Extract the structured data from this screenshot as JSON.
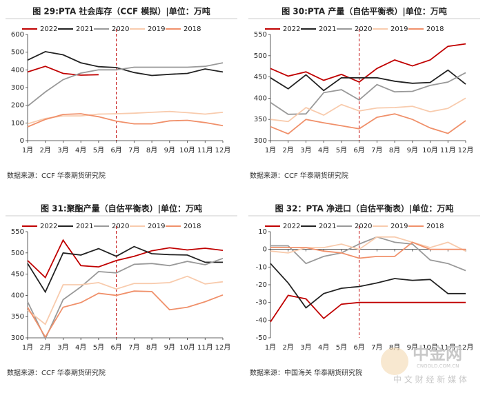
{
  "chart_data": [
    {
      "type": "line",
      "title": "图 29:PTA 社会库存（CCF 模拟）|单位：万吨",
      "source": "数据来源：CCF  华泰期货研究院",
      "categories": [
        "1月",
        "2月",
        "3月",
        "4月",
        "5月",
        "6月",
        "7月",
        "8月",
        "9月",
        "10月",
        "11月",
        "12月"
      ],
      "ylim": [
        0,
        600
      ],
      "yticks": [
        0,
        100,
        200,
        300,
        400,
        500,
        600
      ],
      "series": [
        {
          "name": "2022",
          "color": "#c00000",
          "values": [
            388,
            420,
            380,
            370,
            373,
            null,
            null,
            null,
            null,
            null,
            null,
            null
          ]
        },
        {
          "name": "2021",
          "color": "#222222",
          "values": [
            455,
            503,
            485,
            440,
            418,
            413,
            385,
            368,
            375,
            380,
            405,
            388
          ]
        },
        {
          "name": "2020",
          "color": "#999999",
          "values": [
            195,
            275,
            345,
            382,
            400,
            400,
            415,
            415,
            415,
            415,
            420,
            440
          ]
        },
        {
          "name": "2019",
          "color": "#f8cbad",
          "values": [
            95,
            125,
            140,
            140,
            150,
            152,
            155,
            160,
            165,
            158,
            150,
            160
          ]
        },
        {
          "name": "2018",
          "color": "#f0906a",
          "values": [
            78,
            120,
            148,
            152,
            135,
            110,
            95,
            95,
            112,
            115,
            102,
            85
          ]
        }
      ]
    },
    {
      "type": "line",
      "title": "图 30:PTA 产量（自估平衡表）|单位：万吨",
      "source": "数据来源：CCF  华泰期货研究院",
      "categories": [
        "1月",
        "2月",
        "3月",
        "4月",
        "5月",
        "6月",
        "7月",
        "8月",
        "9月",
        "10月",
        "11月",
        "12月"
      ],
      "ylim": [
        300,
        550
      ],
      "yticks": [
        300,
        350,
        400,
        450,
        500,
        550
      ],
      "series": [
        {
          "name": "2022",
          "color": "#c00000",
          "values": [
            470,
            452,
            462,
            442,
            456,
            438,
            470,
            490,
            476,
            490,
            522,
            528
          ]
        },
        {
          "name": "2021",
          "color": "#222222",
          "values": [
            448,
            422,
            455,
            418,
            448,
            448,
            448,
            440,
            435,
            437,
            466,
            433
          ]
        },
        {
          "name": "2020",
          "color": "#999999",
          "values": [
            390,
            362,
            363,
            413,
            420,
            396,
            432,
            415,
            416,
            430,
            438,
            460
          ]
        },
        {
          "name": "2019",
          "color": "#f8cbad",
          "values": [
            350,
            345,
            378,
            360,
            385,
            370,
            377,
            378,
            381,
            368,
            376,
            400
          ]
        },
        {
          "name": "2018",
          "color": "#f0906a",
          "values": [
            333,
            316,
            350,
            342,
            335,
            328,
            355,
            363,
            350,
            330,
            317,
            347
          ]
        }
      ]
    },
    {
      "type": "line",
      "title": "图 31:聚酯产量（自估平衡表）|单位：万吨",
      "source": "数据来源：CCF  华泰期货研究院",
      "categories": [
        "1月",
        "2月",
        "3月",
        "4月",
        "5月",
        "6月",
        "7月",
        "8月",
        "9月",
        "10月",
        "11月",
        "12月"
      ],
      "ylim": [
        300,
        550
      ],
      "yticks": [
        300,
        350,
        400,
        450,
        500,
        550
      ],
      "series": [
        {
          "name": "2022",
          "color": "#c00000",
          "values": [
            482,
            442,
            530,
            470,
            467,
            482,
            492,
            505,
            512,
            507,
            511,
            506
          ]
        },
        {
          "name": "2021",
          "color": "#222222",
          "values": [
            475,
            408,
            500,
            495,
            510,
            492,
            515,
            498,
            496,
            495,
            478,
            478
          ]
        },
        {
          "name": "2020",
          "color": "#999999",
          "values": [
            385,
            298,
            390,
            420,
            456,
            453,
            473,
            475,
            470,
            480,
            472,
            487
          ]
        },
        {
          "name": "2019",
          "color": "#f8cbad",
          "values": [
            365,
            332,
            425,
            425,
            430,
            415,
            428,
            428,
            430,
            445,
            427,
            432
          ]
        },
        {
          "name": "2018",
          "color": "#f0906a",
          "values": [
            372,
            302,
            372,
            383,
            405,
            400,
            410,
            409,
            366,
            372,
            385,
            401
          ]
        }
      ]
    },
    {
      "type": "line",
      "title": "图 32：PTA 净进口（自估平衡表）|单位：万吨",
      "source": "数据来源：中国海关  华泰期货研究院",
      "categories": [
        "1月",
        "2月",
        "3月",
        "4月",
        "5月",
        "6月",
        "7月",
        "8月",
        "9月",
        "10月",
        "11月",
        "12月"
      ],
      "ylim": [
        -50,
        10
      ],
      "yticks": [
        -50,
        -40,
        -30,
        -20,
        -10,
        0,
        10
      ],
      "series": [
        {
          "name": "2022",
          "color": "#c00000",
          "values": [
            -41,
            -26,
            -28,
            -39,
            -31,
            -30,
            -30,
            -30,
            -30,
            -30,
            -30,
            -30
          ]
        },
        {
          "name": "2021",
          "color": "#222222",
          "values": [
            -8,
            -19,
            -33,
            -25,
            -22,
            -21,
            -19,
            -16.5,
            -17.5,
            -17,
            -25,
            -25
          ]
        },
        {
          "name": "2020",
          "color": "#999999",
          "values": [
            2,
            2,
            -8,
            -4,
            -2,
            3,
            7,
            4,
            3,
            -6,
            -8,
            -12
          ]
        },
        {
          "name": "2019",
          "color": "#f8cbad",
          "values": [
            -1,
            -2,
            1,
            1,
            3,
            0,
            7,
            7,
            4,
            1,
            4,
            -1
          ]
        },
        {
          "name": "2018",
          "color": "#f0906a",
          "values": [
            1,
            1,
            1,
            -1,
            -2,
            -5,
            -4,
            -4,
            4,
            0,
            0,
            0
          ]
        }
      ]
    }
  ],
  "watermark": {
    "name": "中金网",
    "domain": "CNGOLD.COM.CN",
    "tagline": "中 文 财 经 新 媒 体"
  }
}
